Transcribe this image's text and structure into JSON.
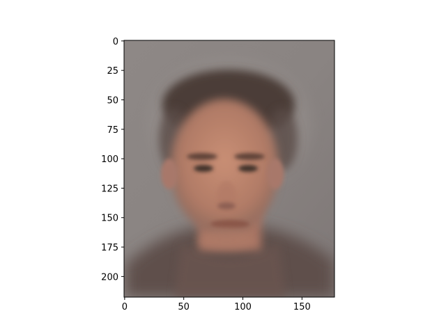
{
  "chart_data": {
    "type": "image",
    "title": "",
    "xlabel": "",
    "ylabel": "",
    "image_width": 178,
    "image_height": 218,
    "xlim": [
      -0.5,
      177.5
    ],
    "ylim": [
      217.5,
      -0.5
    ],
    "x_ticks": [
      0,
      50,
      100,
      150
    ],
    "y_ticks": [
      0,
      25,
      50,
      75,
      100,
      125,
      150,
      175,
      200
    ],
    "x_tick_labels": [
      "0",
      "50",
      "100",
      "150"
    ],
    "y_tick_labels": [
      "0",
      "25",
      "50",
      "75",
      "100",
      "125",
      "150",
      "175",
      "200"
    ],
    "grid": false,
    "content": "blurred average face portrait",
    "colors": {
      "background": "#8a8684",
      "hair": "#4a3c35",
      "skin": "#c08a72",
      "skin_shadow": "#9c6c5b",
      "clothing": "#5e4f4b",
      "axis": "#000000"
    }
  }
}
